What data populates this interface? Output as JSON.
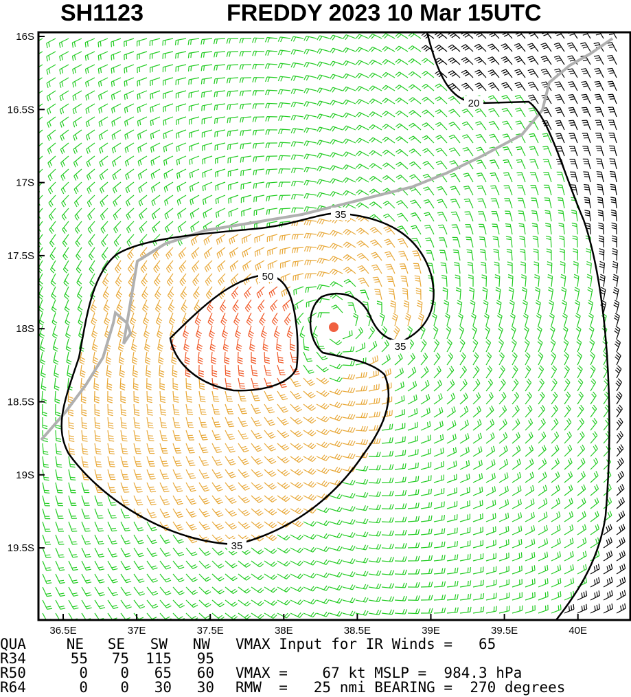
{
  "header": {
    "storm_id": "SH1123",
    "title": "FREDDY 2023 10 Mar 15UTC"
  },
  "map": {
    "lon_labels": [
      "36.5E",
      "37E",
      "37.5E",
      "38E",
      "38.5E",
      "39E",
      "39.5E",
      "40E"
    ],
    "lat_labels": [
      "16S",
      "16.5S",
      "17S",
      "17.5S",
      "18S",
      "18.5S",
      "19S",
      "19.5S"
    ],
    "contour_labels": [
      20,
      35,
      35,
      35,
      50
    ]
  },
  "table": {
    "header": [
      "QUA",
      "NE",
      "SE",
      "SW",
      "NW"
    ],
    "rows": [
      [
        "R34",
        55,
        75,
        115,
        95
      ],
      [
        "R50",
        0,
        0,
        65,
        60
      ],
      [
        "R64",
        0,
        0,
        30,
        30
      ]
    ]
  },
  "notes": [
    "VMAX Input for IR Winds =   65",
    "VMAX =    67 kt MSLP =  984.3 hPa",
    "RMW  =   25 nmi BEARING =  270 degrees"
  ]
}
